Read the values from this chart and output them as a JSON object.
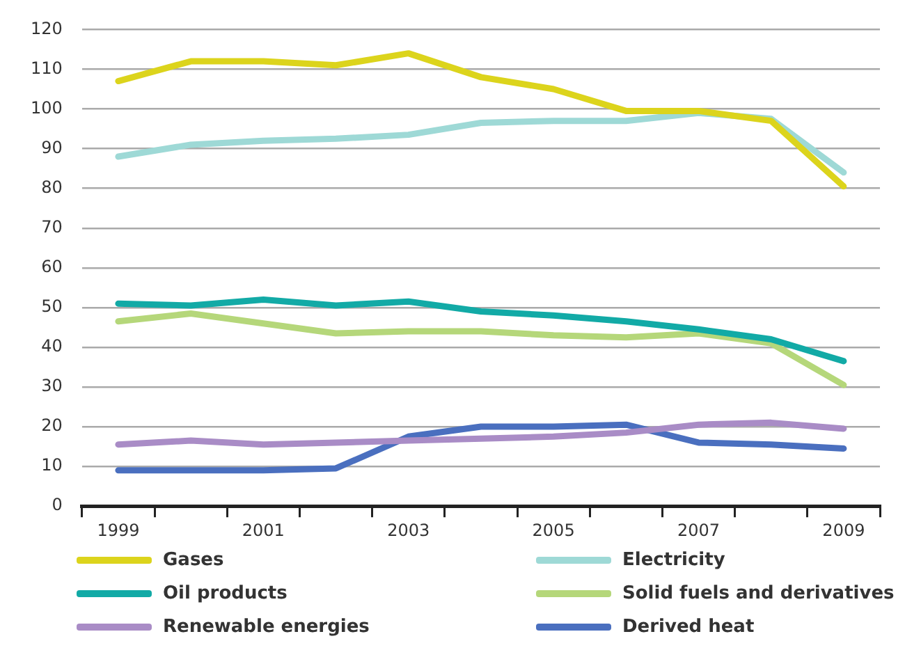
{
  "chart_data": {
    "type": "line",
    "categories": [
      "1999",
      null,
      "2001",
      null,
      "2003",
      null,
      "2005",
      null,
      "2007",
      null,
      "2009"
    ],
    "ylim": [
      0,
      120
    ],
    "yticks": [
      0,
      10,
      20,
      30,
      40,
      50,
      60,
      70,
      80,
      90,
      100,
      110,
      120
    ],
    "grid": "y",
    "legend": "bottom",
    "marker": "none",
    "line_style": "solid",
    "series": [
      {
        "name": "Gases",
        "color": "#dcd41c",
        "values": [
          107,
          112,
          112,
          111,
          114,
          108,
          105,
          99.5,
          99.5,
          97,
          80.5
        ]
      },
      {
        "name": "Electricity",
        "color": "#9ed9d6",
        "values": [
          88,
          91,
          92,
          92.5,
          93.5,
          96.5,
          97,
          97,
          99,
          97.5,
          84
        ]
      },
      {
        "name": "Oil products",
        "color": "#12aaa6",
        "values": [
          51,
          50.5,
          52,
          50.5,
          51.5,
          49,
          48,
          46.5,
          44.5,
          42,
          36.5
        ]
      },
      {
        "name": "Solid fuels and derivatives",
        "color": "#b5d77a",
        "values": [
          46.5,
          48.5,
          46,
          43.5,
          44,
          44,
          43,
          42.5,
          43.5,
          41,
          30.5
        ]
      },
      {
        "name": "Renewable energies",
        "color": "#a98cc6",
        "values": [
          15.5,
          16.5,
          15.5,
          16,
          16.5,
          17,
          17.5,
          18.5,
          20.5,
          21,
          19.5
        ]
      },
      {
        "name": "Derived heat",
        "color": "#4a6fbf",
        "values": [
          9,
          9,
          9,
          9.5,
          17.5,
          20,
          20,
          20.5,
          16,
          15.5,
          14.5
        ]
      }
    ]
  }
}
